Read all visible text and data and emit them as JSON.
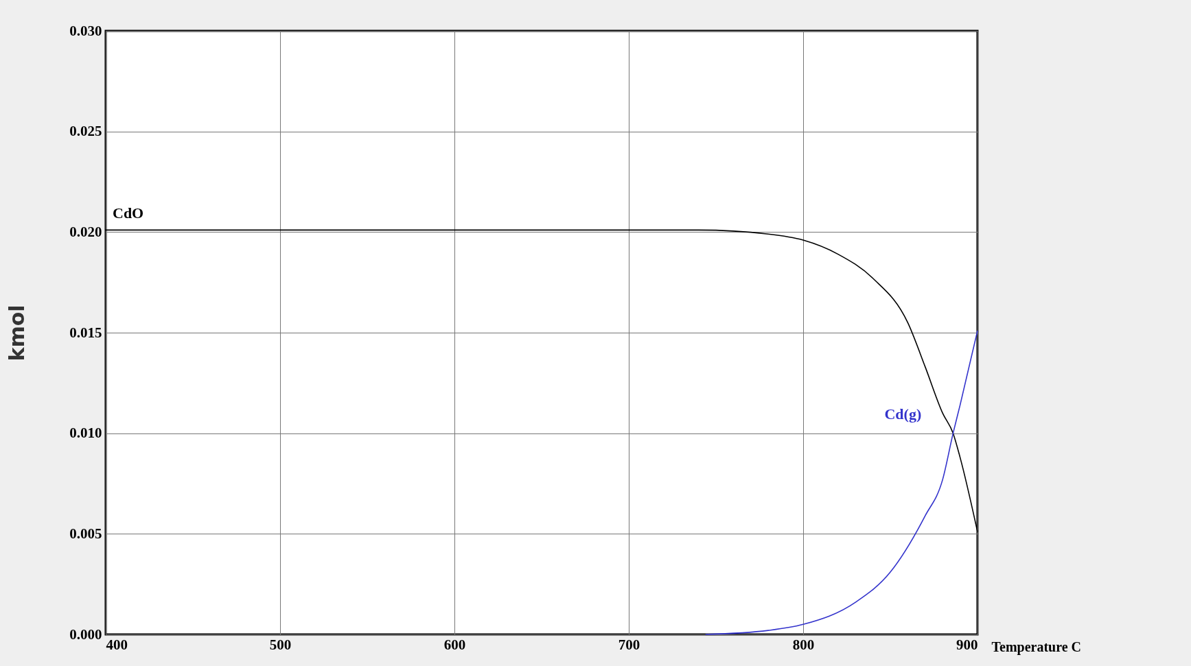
{
  "chart_data": {
    "type": "line",
    "xlabel": "Temperature C",
    "ylabel": "kmol",
    "xlim": [
      400,
      900
    ],
    "ylim": [
      0,
      0.03
    ],
    "xticks": [
      400,
      500,
      600,
      700,
      800,
      900
    ],
    "yticks": [
      {
        "value": 0,
        "label": "0.000"
      },
      {
        "value": 0.005,
        "label": "0.005"
      },
      {
        "value": 0.01,
        "label": "0.010"
      },
      {
        "value": 0.015,
        "label": "0.015"
      },
      {
        "value": 0.02,
        "label": "0.020"
      },
      {
        "value": 0.025,
        "label": "0.025"
      },
      {
        "value": 0.03,
        "label": "0.030"
      }
    ],
    "grid": true,
    "legend": false,
    "marker": "none",
    "line_style": "solid",
    "series": [
      {
        "name": "CdO",
        "color": "#000000",
        "x": [
          400,
          500,
          600,
          700,
          740,
          780,
          800,
          820,
          840,
          860,
          870,
          880,
          886,
          890,
          900
        ],
        "values": [
          0.0201,
          0.0201,
          0.0201,
          0.0201,
          0.0201,
          0.0199,
          0.0196,
          0.0189,
          0.0177,
          0.0155,
          0.0133,
          0.011,
          0.01,
          0.0088,
          0.0051
        ]
      },
      {
        "name": "Cd(g)",
        "color": "#3333cc",
        "x": [
          744,
          780,
          800,
          830,
          850,
          870,
          880,
          886,
          890,
          900
        ],
        "values": [
          0,
          0.0002,
          0.0005,
          0.0016,
          0.0031,
          0.0059,
          0.0077,
          0.01,
          0.0114,
          0.0151
        ]
      }
    ]
  }
}
